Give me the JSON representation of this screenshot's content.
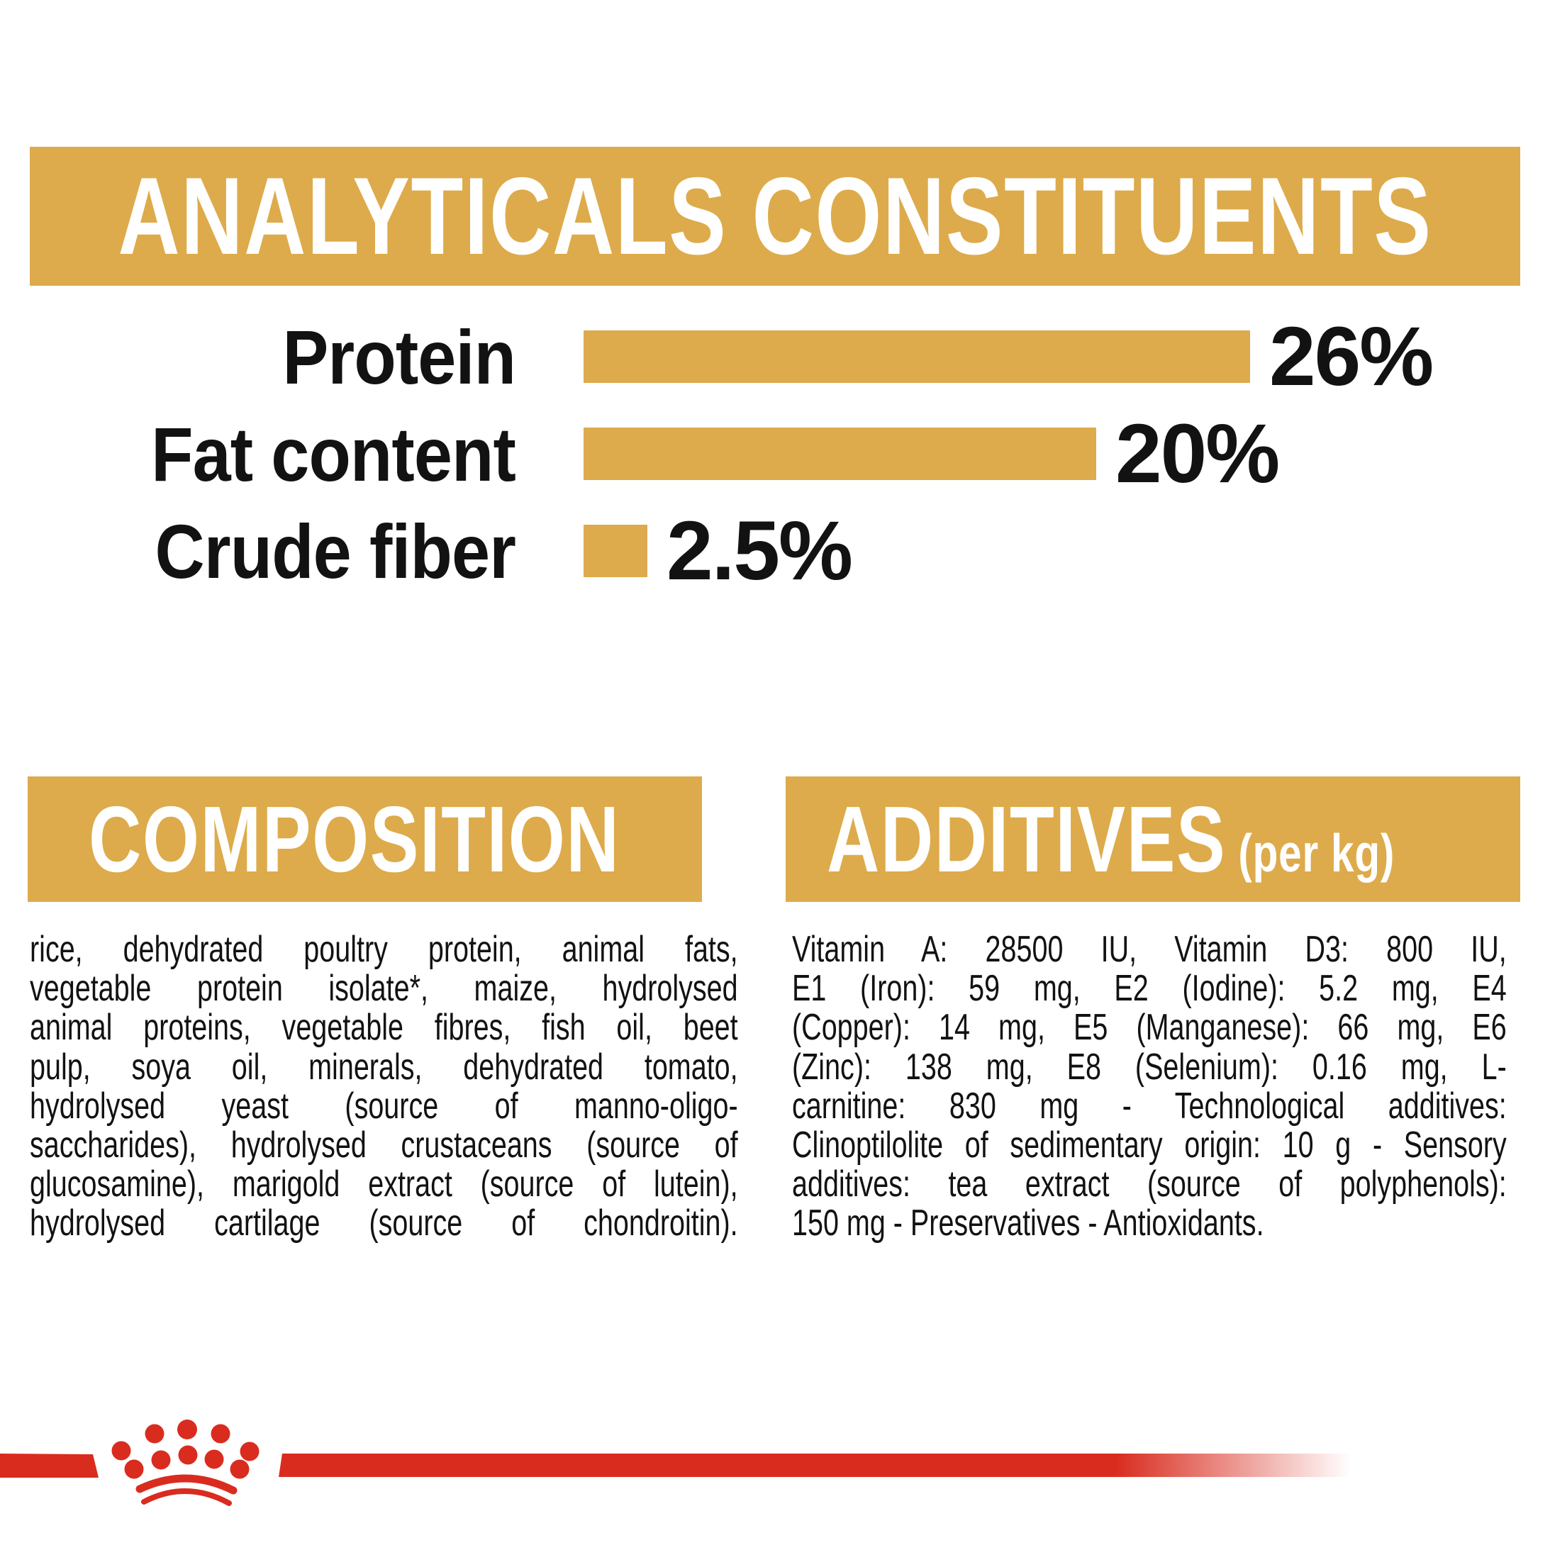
{
  "colors": {
    "gold": "#DDAB4B",
    "red": "#D92C1F",
    "ink": "#121212",
    "banner_text": "#FFFFFF",
    "background": "#FFFFFF"
  },
  "header": {
    "title": "ANALYTICALS CONSTITUENTS"
  },
  "chart_data": {
    "type": "bar",
    "orientation": "horizontal",
    "title": "ANALYTICALS CONSTITUENTS",
    "categories": [
      "Protein",
      "Fat content",
      "Crude fiber"
    ],
    "values": [
      26,
      20,
      2.5
    ],
    "value_labels": [
      "26%",
      "20%",
      "2.5%"
    ],
    "unit": "%",
    "xlim": [
      0,
      26
    ],
    "grid": false,
    "bar_color": "#DDAB4B",
    "xlabel": "",
    "ylabel": ""
  },
  "composition": {
    "heading": "COMPOSITION",
    "lines": [
      "rice, dehydrated poultry protein, animal fats,",
      "vegetable protein isolate*, maize, hydrolysed",
      "animal proteins, vegetable fibres, fish oil, beet",
      "pulp, soya oil, minerals, dehydrated tomato,",
      "hydrolysed yeast (source of manno-oligo-",
      "saccharides), hydrolysed crustaceans (source of",
      "glucosamine), marigold extract (source of lutein),",
      "hydrolysed cartilage (source of chondroitin)."
    ]
  },
  "additives": {
    "heading": "ADDITIVES",
    "heading_suffix": "(per kg)",
    "lines": [
      "Vitamin A: 28500 IU, Vitamin D3: 800 IU,",
      "E1 (Iron): 59 mg, E2 (Iodine): 5.2 mg, E4",
      "(Copper): 14 mg, E5 (Manganese): 66 mg, E6",
      "(Zinc): 138 mg, E8 (Selenium): 0.16 mg, L-",
      "carnitine: 830 mg - Technological additives:",
      "Clinoptilolite of sedimentary origin: 10 g - Sensory",
      "additives: tea extract (source of polyphenols):",
      "150 mg - Preservatives - Antioxidants."
    ]
  },
  "footer": {
    "logo_icon": "royal-canin-crown-logo"
  }
}
